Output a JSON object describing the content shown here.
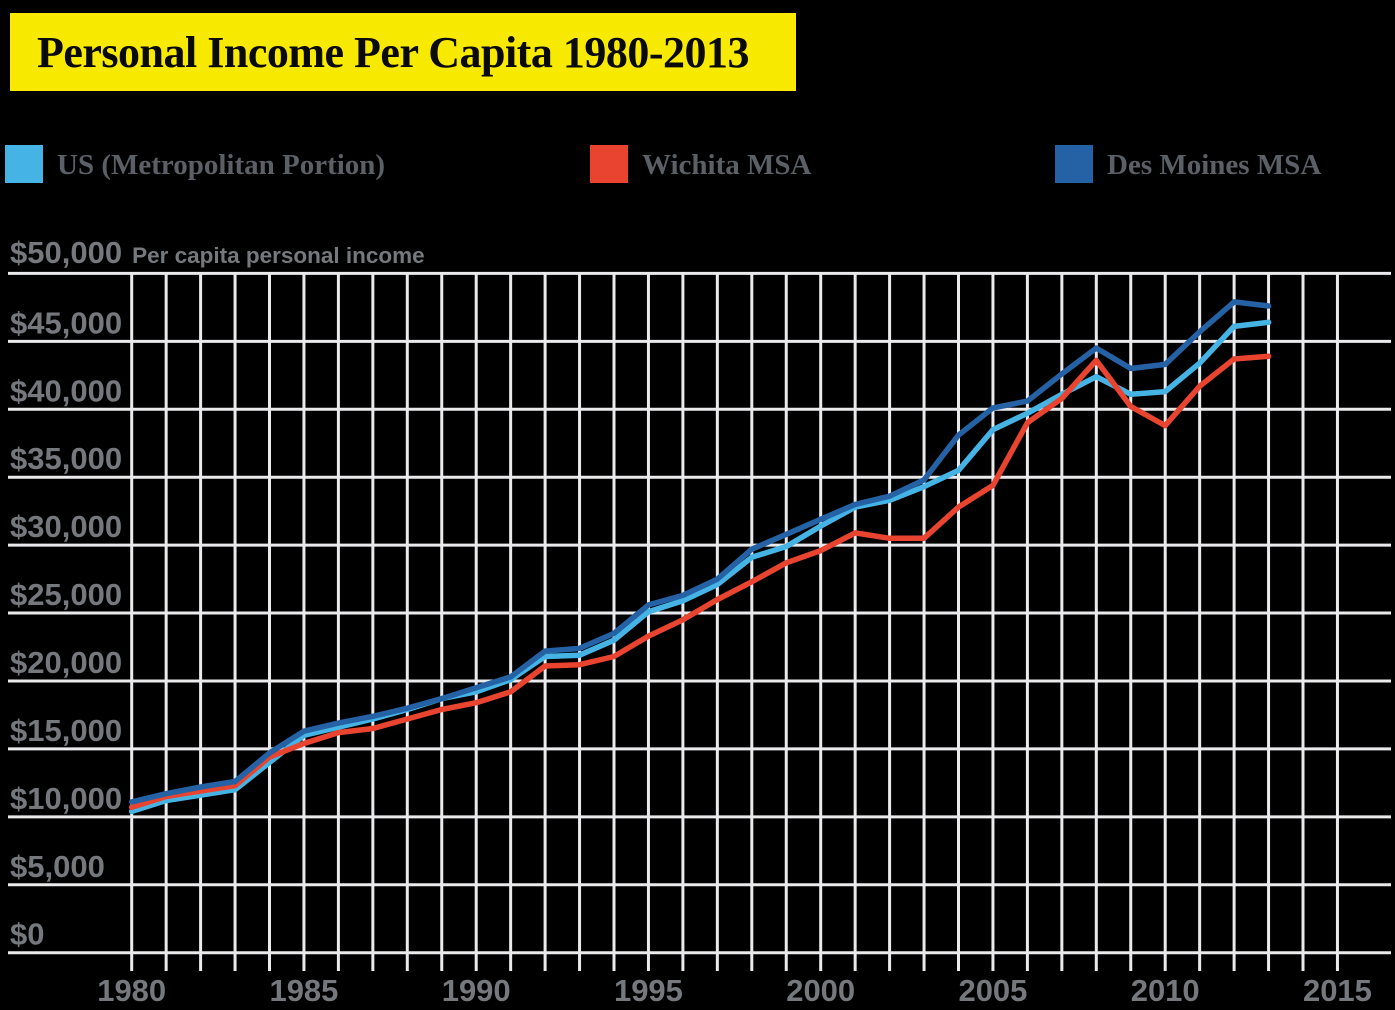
{
  "title": "Personal Income Per Capita 1980-2013",
  "title_bg_color": "#f7ea00",
  "legend_position": "top",
  "chart_data": {
    "type": "line",
    "title": "Personal Income Per Capita 1980-2013",
    "ylabel": "Per capita personal income",
    "xlabel": "",
    "grid": "on",
    "ylim": [
      0,
      50000
    ],
    "ytick_step": 5000,
    "ytick_labels": [
      "$0",
      "$5,000",
      "$10,000",
      "$15,000",
      "$20,000",
      "$25,000",
      "$30,000",
      "$35,000",
      "$40,000",
      "$45,000",
      "$50,000"
    ],
    "xlim_grid_years": [
      1980,
      2015
    ],
    "xticks": [
      1980,
      1985,
      1990,
      1995,
      2000,
      2005,
      2010,
      2015
    ],
    "x": [
      1980,
      1981,
      1982,
      1983,
      1984,
      1985,
      1986,
      1987,
      1988,
      1989,
      1990,
      1991,
      1992,
      1993,
      1994,
      1995,
      1996,
      1997,
      1998,
      1999,
      2000,
      2001,
      2002,
      2003,
      2004,
      2005,
      2006,
      2007,
      2008,
      2009,
      2010,
      2011,
      2012,
      2013
    ],
    "series": [
      {
        "name": "US (Metropolitan Portion)",
        "color": "#45b4e4",
        "values": [
          10400,
          11200,
          11600,
          12000,
          14000,
          16000,
          16600,
          17200,
          17900,
          18700,
          19200,
          20100,
          21800,
          21900,
          23000,
          25100,
          25900,
          27100,
          29100,
          29900,
          31400,
          32800,
          33300,
          34300,
          35500,
          38500,
          39700,
          41100,
          42400,
          41100,
          41300,
          43400,
          46100,
          46400
        ]
      },
      {
        "name": "Wichita MSA",
        "color": "#e8442f",
        "values": [
          10700,
          11500,
          11900,
          12300,
          14400,
          15400,
          16200,
          16500,
          17200,
          17900,
          18400,
          19200,
          21100,
          21200,
          21800,
          23300,
          24500,
          26000,
          27300,
          28700,
          29600,
          30900,
          30500,
          30500,
          32800,
          34400,
          39000,
          40800,
          43600,
          40200,
          38800,
          41700,
          43700,
          43900
        ]
      },
      {
        "name": "Des Moines MSA",
        "color": "#2562a5",
        "values": [
          11100,
          11700,
          12200,
          12600,
          14700,
          16300,
          16900,
          17400,
          18000,
          18700,
          19500,
          20300,
          22200,
          22400,
          23500,
          25600,
          26300,
          27500,
          29700,
          30800,
          31900,
          33000,
          33600,
          34800,
          38100,
          40100,
          40600,
          42600,
          44500,
          43000,
          43300,
          45700,
          47900,
          47600
        ]
      }
    ],
    "grid_color": "#eaeaec",
    "tick_label_color": "#75787d"
  }
}
